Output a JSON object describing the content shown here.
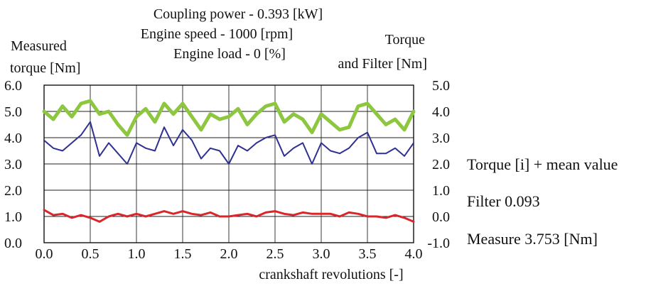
{
  "chart_data": {
    "type": "line",
    "title_lines": [
      "Coupling power - 0.393 [kW]",
      "Engine speed - 1000 [rpm]",
      "Engine load - 0 [%]"
    ],
    "ylabel_left": [
      "Measured",
      "torque [Nm]"
    ],
    "ylabel_right": [
      "Torque",
      "and Filter [Nm]"
    ],
    "xlabel": "crankshaft revolutions [-]",
    "xlim": [
      0,
      4
    ],
    "ylim_left": [
      0,
      6
    ],
    "ylim_right": [
      -1,
      5
    ],
    "x_ticks": [
      "0.0",
      "0.5",
      "1.0",
      "1.5",
      "2.0",
      "2.5",
      "3.0",
      "3.5",
      "4.0"
    ],
    "y_ticks_left": [
      "0.0",
      "1.0",
      "2.0",
      "3.0",
      "4.0",
      "5.0",
      "6.0"
    ],
    "y_ticks_right": [
      "-1.0",
      "0.0",
      "1.0",
      "2.0",
      "3.0",
      "4.0",
      "5.0"
    ],
    "grid": true,
    "legend_position": "right",
    "series": [
      {
        "name": "Torque [i] + mean value",
        "axis": "right",
        "color": "#8dc63f",
        "x": [
          0.0,
          0.1,
          0.2,
          0.3,
          0.4,
          0.5,
          0.6,
          0.7,
          0.8,
          0.9,
          1.0,
          1.1,
          1.2,
          1.3,
          1.4,
          1.5,
          1.6,
          1.7,
          1.8,
          1.9,
          2.0,
          2.1,
          2.2,
          2.3,
          2.4,
          2.5,
          2.6,
          2.7,
          2.8,
          2.9,
          3.0,
          3.1,
          3.2,
          3.3,
          3.4,
          3.5,
          3.6,
          3.7,
          3.8,
          3.9,
          4.0
        ],
        "y": [
          4.0,
          3.7,
          4.2,
          3.8,
          4.3,
          4.4,
          3.9,
          4.0,
          3.5,
          3.1,
          3.8,
          4.1,
          3.6,
          4.3,
          3.9,
          4.3,
          3.8,
          3.3,
          3.9,
          3.7,
          3.8,
          4.1,
          3.5,
          3.9,
          4.2,
          4.3,
          3.6,
          3.9,
          3.7,
          3.2,
          3.9,
          3.6,
          3.3,
          3.4,
          4.2,
          4.3,
          3.9,
          3.5,
          3.7,
          3.3,
          4.0
        ]
      },
      {
        "name": "Filter 0.093",
        "axis": "right",
        "color": "#d9262b",
        "x": [
          0.0,
          0.1,
          0.2,
          0.3,
          0.4,
          0.5,
          0.6,
          0.7,
          0.8,
          0.9,
          1.0,
          1.1,
          1.2,
          1.3,
          1.4,
          1.5,
          1.6,
          1.7,
          1.8,
          1.9,
          2.0,
          2.1,
          2.2,
          2.3,
          2.4,
          2.5,
          2.6,
          2.7,
          2.8,
          2.9,
          3.0,
          3.1,
          3.2,
          3.3,
          3.4,
          3.5,
          3.6,
          3.7,
          3.8,
          3.9,
          4.0
        ],
        "y": [
          0.25,
          0.05,
          0.1,
          -0.05,
          0.05,
          -0.05,
          -0.2,
          0.0,
          0.1,
          0.0,
          0.1,
          0.0,
          0.1,
          0.2,
          0.1,
          0.2,
          0.1,
          0.05,
          0.15,
          0.0,
          0.0,
          0.05,
          0.1,
          0.0,
          0.15,
          0.2,
          0.1,
          0.05,
          0.15,
          0.1,
          0.1,
          0.1,
          0.0,
          0.15,
          0.1,
          0.0,
          0.0,
          -0.05,
          0.05,
          -0.05,
          -0.2
        ]
      },
      {
        "name": "Measure 3.753 [Nm]",
        "axis": "left",
        "color": "#2e3192",
        "x": [
          0.0,
          0.1,
          0.2,
          0.3,
          0.4,
          0.5,
          0.6,
          0.7,
          0.8,
          0.9,
          1.0,
          1.1,
          1.2,
          1.3,
          1.4,
          1.5,
          1.6,
          1.7,
          1.8,
          1.9,
          2.0,
          2.1,
          2.2,
          2.3,
          2.4,
          2.5,
          2.6,
          2.7,
          2.8,
          2.9,
          3.0,
          3.1,
          3.2,
          3.3,
          3.4,
          3.5,
          3.6,
          3.7,
          3.8,
          3.9,
          4.0
        ],
        "y": [
          3.9,
          3.6,
          3.5,
          3.8,
          4.1,
          4.6,
          3.3,
          3.8,
          3.4,
          3.0,
          3.8,
          3.6,
          3.5,
          4.4,
          3.7,
          4.3,
          3.9,
          3.2,
          3.6,
          3.5,
          3.0,
          3.7,
          3.5,
          3.8,
          4.0,
          4.1,
          3.3,
          3.6,
          3.8,
          3.0,
          3.8,
          3.5,
          3.4,
          3.6,
          4.0,
          4.2,
          3.4,
          3.4,
          3.6,
          3.3,
          3.8
        ]
      }
    ]
  }
}
